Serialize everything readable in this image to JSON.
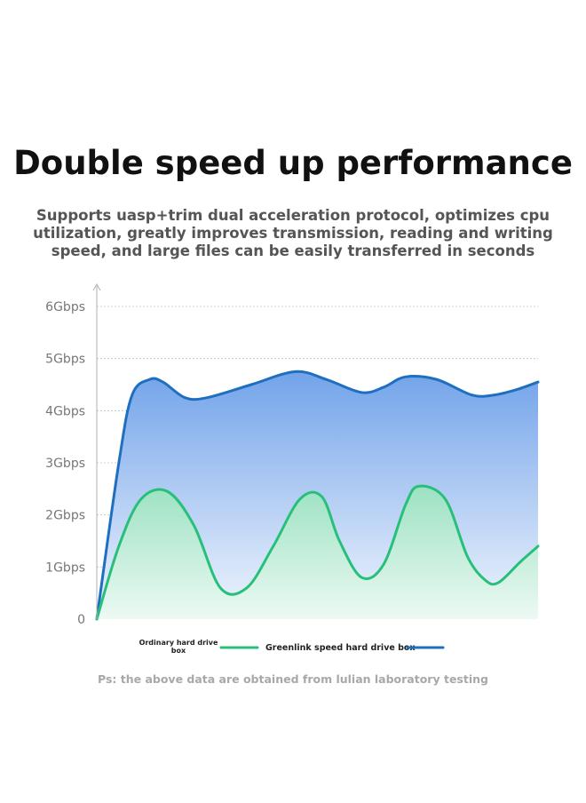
{
  "header": {
    "title": "Double speed up performance",
    "subtitle_lines": [
      "Supports uasp+trim dual acceleration protocol, optimizes cpu",
      "utilization, greatly improves transmission, reading and writing",
      "speed, and large files can be easily transferred in seconds"
    ]
  },
  "footnote": "Ps: the above data are obtained from lulian laboratory testing",
  "chart_data": {
    "type": "area",
    "title": "",
    "xlabel": "",
    "ylabel": "",
    "y_ticks": [
      "0",
      "1Gbps",
      "2Gbps",
      "3Gbps",
      "4Gbps",
      "5Gbps",
      "6Gbps"
    ],
    "ylim": [
      0,
      6
    ],
    "xlim": [
      0,
      100
    ],
    "grid": "horizontal dashed",
    "legend": "bottom",
    "legend_labels": {
      "ordinary_line1": "Ordinary hard drive",
      "ordinary_line2": "box",
      "greenlink": "Greenlink speed hard drive box"
    },
    "series": [
      {
        "key": "greenlink",
        "color": "#1f6fc0",
        "fill_top": "#6a9ee8",
        "fill_bottom": "#eef4fd",
        "x": [
          0,
          5,
          8,
          12,
          15,
          20,
          25,
          35,
          45,
          52,
          60,
          65,
          70,
          77,
          85,
          90,
          95,
          100
        ],
        "values": [
          0,
          3.0,
          4.3,
          4.6,
          4.55,
          4.25,
          4.25,
          4.5,
          4.75,
          4.6,
          4.35,
          4.45,
          4.65,
          4.6,
          4.3,
          4.3,
          4.4,
          4.55
        ]
      },
      {
        "key": "ordinary",
        "color": "#27c07a",
        "fill_top": "#9be3bf",
        "fill_bottom": "#ecfaf2",
        "x": [
          0,
          5,
          10,
          16,
          22,
          28,
          34,
          40,
          46,
          51,
          55,
          60,
          65,
          70,
          73,
          79,
          84,
          88,
          91,
          96,
          100
        ],
        "values": [
          0,
          1.4,
          2.3,
          2.45,
          1.8,
          0.6,
          0.6,
          1.4,
          2.3,
          2.35,
          1.5,
          0.8,
          1.05,
          2.2,
          2.55,
          2.3,
          1.2,
          0.75,
          0.7,
          1.1,
          1.4
        ]
      }
    ]
  }
}
